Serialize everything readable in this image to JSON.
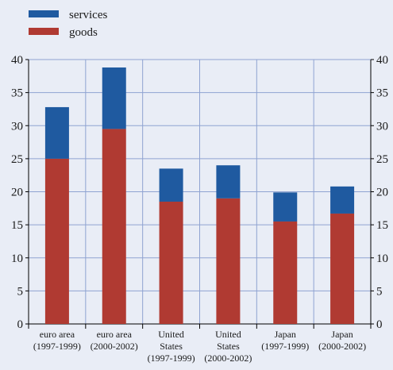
{
  "chart_data": {
    "type": "bar",
    "stacked": true,
    "categories": [
      [
        "euro area",
        "(1997-1999)"
      ],
      [
        "euro area",
        "(2000-2002)"
      ],
      [
        "United",
        "States",
        "(1997-1999)"
      ],
      [
        "United",
        "States",
        "(2000-2002)"
      ],
      [
        "Japan",
        "(1997-1999)"
      ],
      [
        "Japan",
        "(2000-2002)"
      ]
    ],
    "series": [
      {
        "name": "goods",
        "color": "#b03a32",
        "values": [
          25.0,
          29.5,
          18.5,
          19.0,
          15.5,
          16.7
        ]
      },
      {
        "name": "services",
        "color": "#1f5aa0",
        "values": [
          7.8,
          9.3,
          5.0,
          5.0,
          4.4,
          4.1
        ]
      }
    ],
    "legend_order": [
      "services",
      "goods"
    ],
    "legend_position": "top-left",
    "ylim": [
      0,
      40
    ],
    "yticks": [
      0,
      5,
      10,
      15,
      20,
      25,
      30,
      35,
      40
    ],
    "y_axis_both_sides": true,
    "grid": true,
    "grid_color": "#8fa3d1"
  }
}
